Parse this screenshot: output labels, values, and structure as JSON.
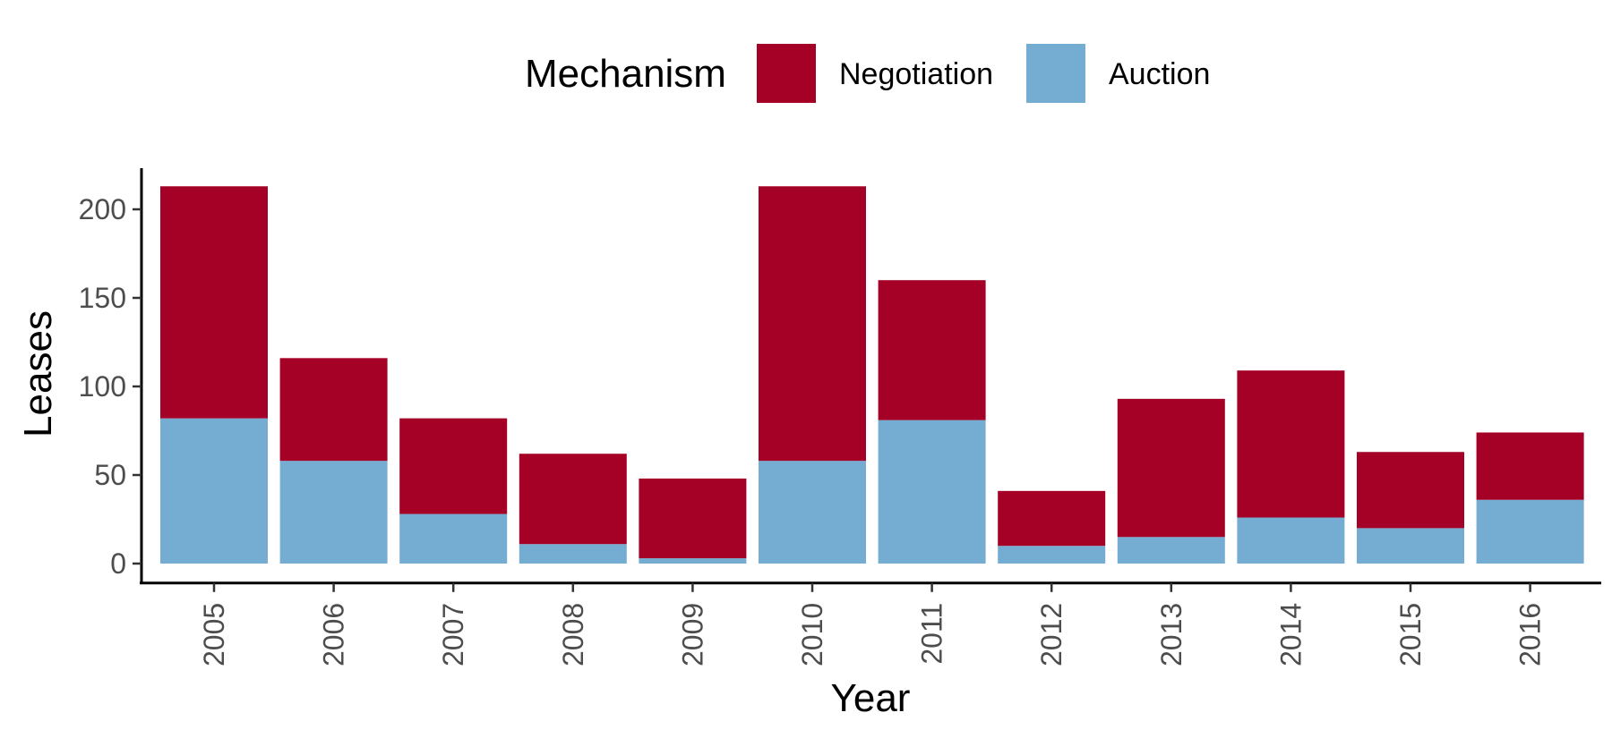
{
  "chart_data": {
    "type": "bar",
    "stacked": true,
    "categories": [
      "2005",
      "2006",
      "2007",
      "2008",
      "2009",
      "2010",
      "2011",
      "2012",
      "2013",
      "2014",
      "2015",
      "2016"
    ],
    "series": [
      {
        "name": "Auction",
        "color": "#74acd2",
        "values": [
          82,
          58,
          28,
          11,
          3,
          58,
          81,
          10,
          15,
          26,
          20,
          36
        ]
      },
      {
        "name": "Negotiation",
        "color": "#a50026",
        "values": [
          131,
          58,
          54,
          51,
          45,
          155,
          79,
          31,
          78,
          83,
          43,
          38
        ]
      }
    ],
    "legend_title": "Mechanism",
    "legend_order": [
      "Negotiation",
      "Auction"
    ],
    "legend_position": "top",
    "xlabel": "Year",
    "ylabel": "Leases",
    "yticks": [
      0,
      50,
      100,
      150,
      200
    ],
    "ylim": [
      -10,
      225
    ],
    "grid": false
  }
}
